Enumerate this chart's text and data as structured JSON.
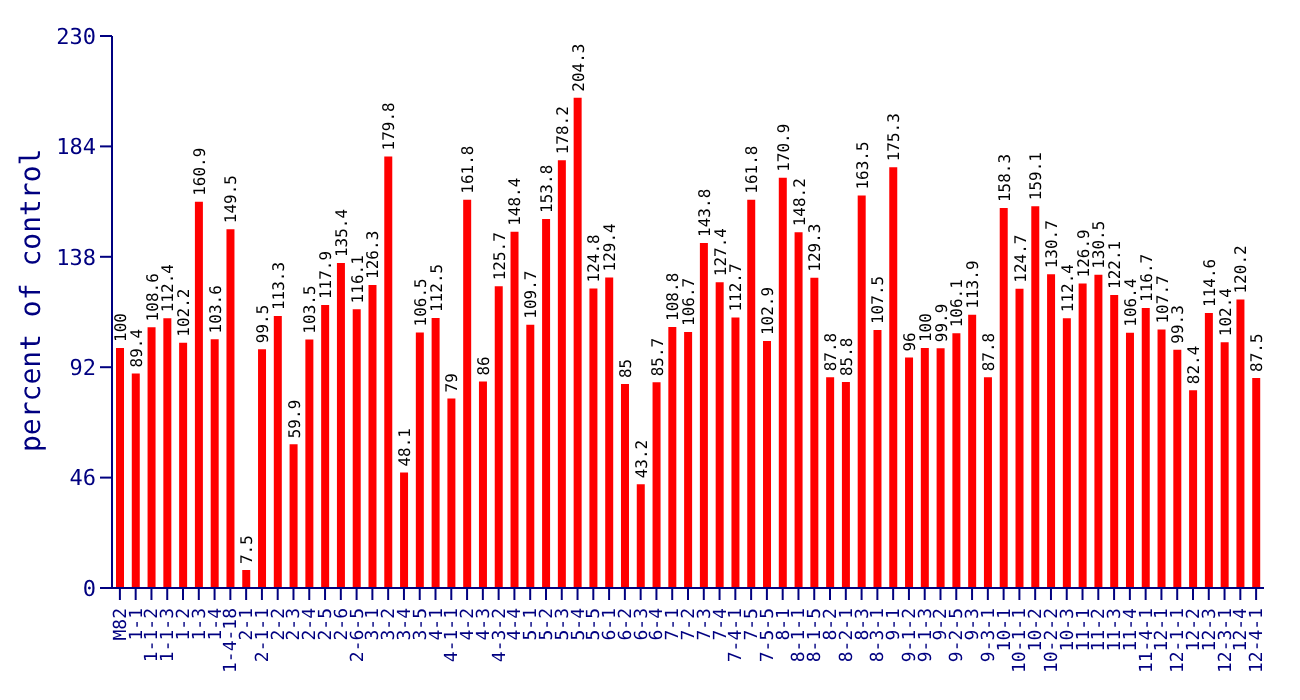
{
  "chart_data": {
    "type": "bar",
    "ylabel": "percent of control",
    "categories": [
      "M82",
      "1-1",
      "1-1-2",
      "1-1-3",
      "1-2",
      "1-3",
      "1-4",
      "1-4-18",
      "2-1",
      "2-1-1",
      "2-2",
      "2-3",
      "2-4",
      "2-5",
      "2-6",
      "2-6-5",
      "3-1",
      "3-2",
      "3-4",
      "3-5",
      "4-1",
      "4-1-1",
      "4-2",
      "4-3",
      "4-3-2",
      "4-4",
      "5-1",
      "5-2",
      "5-3",
      "5-4",
      "5-5",
      "6-1",
      "6-2",
      "6-3",
      "6-4",
      "7-1",
      "7-2",
      "7-3",
      "7-4",
      "7-4-1",
      "7-5",
      "7-5-5",
      "8-1",
      "8-1-1",
      "8-1-5",
      "8-2",
      "8-2-1",
      "8-3",
      "8-3-1",
      "9-1",
      "9-1-2",
      "9-1-3",
      "9-2",
      "9-2-5",
      "9-3",
      "9-3-1",
      "10-1",
      "10-1-1",
      "10-2",
      "10-2-2",
      "10-3",
      "11-1",
      "11-2",
      "11-3",
      "11-4",
      "11-4-1",
      "12-1",
      "12-1-1",
      "12-2",
      "12-3",
      "12-3-1",
      "12-4",
      "12-4-1"
    ],
    "values": [
      100,
      89.4,
      108.6,
      112.4,
      102.2,
      160.9,
      103.6,
      149.5,
      7.5,
      99.5,
      113.3,
      59.9,
      103.5,
      117.9,
      135.4,
      116.1,
      126.3,
      179.8,
      48.1,
      106.5,
      112.5,
      79,
      161.8,
      86,
      125.7,
      148.4,
      109.7,
      153.8,
      178.2,
      204.3,
      124.8,
      129.4,
      85,
      43.2,
      85.7,
      108.8,
      106.7,
      143.8,
      127.4,
      112.7,
      161.8,
      102.9,
      170.9,
      148.2,
      129.3,
      87.8,
      85.8,
      163.5,
      107.5,
      175.3,
      96,
      100,
      99.9,
      106.1,
      113.9,
      87.8,
      158.3,
      124.7,
      159.1,
      130.7,
      112.4,
      126.9,
      130.5,
      122.1,
      106.4,
      116.7,
      107.7,
      99.3,
      82.4,
      114.6,
      102.4,
      120.2,
      87.5
    ],
    "color": "#ff0000",
    "ylim": [
      0,
      230
    ],
    "yticks": [
      0,
      46,
      92,
      138,
      184,
      230
    ],
    "data_labels": true
  }
}
